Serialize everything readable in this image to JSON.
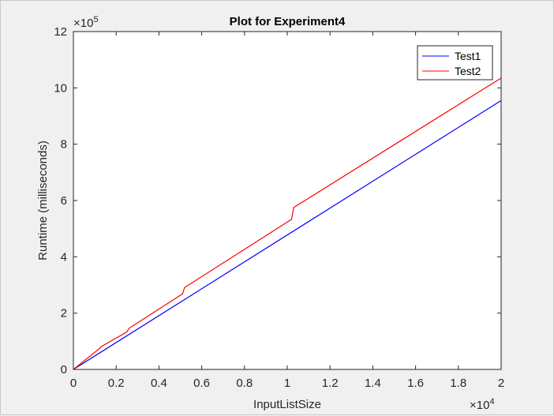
{
  "chart_data": {
    "type": "line",
    "title": "Plot for Experiment4",
    "xlabel": "InputListSize",
    "ylabel": "Runtime (milliseconds)",
    "x_exponent": "4",
    "y_exponent": "5",
    "x_multiplier_base": "×10",
    "y_multiplier_base": "×10",
    "xlim": [
      0,
      20000
    ],
    "ylim": [
      0,
      1200000
    ],
    "x_ticks": [
      0,
      2000,
      4000,
      6000,
      8000,
      10000,
      12000,
      14000,
      16000,
      18000,
      20000
    ],
    "x_tick_labels": [
      "0",
      "0.2",
      "0.4",
      "0.6",
      "0.8",
      "1",
      "1.2",
      "1.4",
      "1.6",
      "1.8",
      "2"
    ],
    "y_ticks": [
      0,
      200000,
      400000,
      600000,
      800000,
      1000000,
      1200000
    ],
    "y_tick_labels": [
      "0",
      "2",
      "4",
      "6",
      "8",
      "10",
      "12"
    ],
    "grid": false,
    "legend_position": "top-right",
    "series": [
      {
        "name": "Test1",
        "color": "#0000ff",
        "x": [
          0,
          20000
        ],
        "y": [
          0,
          955000
        ]
      },
      {
        "name": "Test2",
        "color": "#ff0000",
        "x": [
          0,
          1200,
          1300,
          2500,
          2600,
          5100,
          5200,
          10200,
          10300,
          20000
        ],
        "y": [
          0,
          73000,
          81000,
          133000,
          146000,
          268000,
          291000,
          533000,
          575000,
          1035000
        ]
      }
    ]
  }
}
